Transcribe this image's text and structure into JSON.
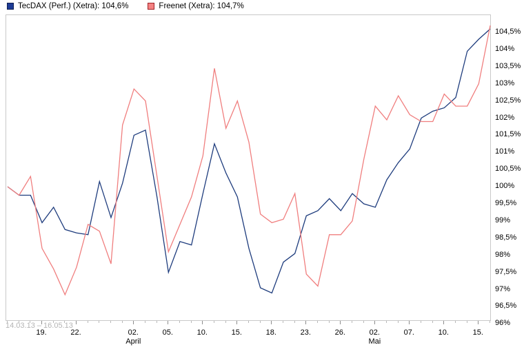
{
  "legend": {
    "items": [
      {
        "id": "tecdax",
        "label": "TecDAX (Perf.) (Xetra): 104,6%",
        "swatch_fill": "#1e3c96",
        "swatch_border": "#0f1f50"
      },
      {
        "id": "freenet",
        "label": "Freenet (Xetra): 104,7%",
        "swatch_fill": "#f48282",
        "swatch_border": "#9e2126"
      }
    ]
  },
  "axes": {
    "date_range": "14.03.13 – 16.05.13",
    "y_labels": [
      "104,5%",
      "104%",
      "103,5%",
      "103%",
      "102,5%",
      "102%",
      "101,5%",
      "101%",
      "100,5%",
      "100%",
      "99,5%",
      "99%",
      "98,5%",
      "98%",
      "97,5%",
      "97%",
      "96,5%",
      "96%"
    ],
    "x_ticks": [
      {
        "i": 3,
        "label": "19."
      },
      {
        "i": 6,
        "label": "22."
      },
      {
        "i": 11,
        "label": "02.",
        "month": "April"
      },
      {
        "i": 14,
        "label": "05."
      },
      {
        "i": 17,
        "label": "10."
      },
      {
        "i": 20,
        "label": "15."
      },
      {
        "i": 23,
        "label": "18."
      },
      {
        "i": 26,
        "label": "23."
      },
      {
        "i": 29,
        "label": "26."
      },
      {
        "i": 32,
        "label": "02.",
        "month": "Mai"
      },
      {
        "i": 35,
        "label": "07."
      },
      {
        "i": 38,
        "label": "10."
      },
      {
        "i": 41,
        "label": "15."
      }
    ]
  },
  "chart_data": {
    "type": "line",
    "title": "",
    "xlabel": "",
    "ylabel": "",
    "ylim": [
      96,
      104.5
    ],
    "y_tick_step": 0.5,
    "grid": false,
    "legend_position": "top-left",
    "x": [
      "14.03.13",
      "15.03.13",
      "18.03.13",
      "19.03.13",
      "20.03.13",
      "21.03.13",
      "22.03.13",
      "25.03.13",
      "26.03.13",
      "27.03.13",
      "28.03.13",
      "02.04.13",
      "03.04.13",
      "04.04.13",
      "05.04.13",
      "08.04.13",
      "09.04.13",
      "10.04.13",
      "11.04.13",
      "12.04.13",
      "15.04.13",
      "16.04.13",
      "17.04.13",
      "18.04.13",
      "19.04.13",
      "22.04.13",
      "23.04.13",
      "24.04.13",
      "25.04.13",
      "26.04.13",
      "29.04.13",
      "30.04.13",
      "02.05.13",
      "03.05.13",
      "06.05.13",
      "07.05.13",
      "08.05.13",
      "09.05.13",
      "10.05.13",
      "13.05.13",
      "14.05.13",
      "15.05.13",
      "16.05.13"
    ],
    "series": [
      {
        "id": "tecdax",
        "name": "TecDAX (Perf.) (Xetra)",
        "color": "#1e3c7d",
        "final_value_pct": 104.6,
        "values": [
          100.0,
          99.75,
          99.75,
          98.95,
          99.4,
          98.75,
          98.65,
          98.6,
          100.15,
          99.1,
          100.1,
          101.5,
          101.65,
          99.7,
          97.5,
          98.4,
          98.3,
          99.8,
          101.25,
          100.4,
          99.7,
          98.2,
          97.05,
          96.9,
          97.8,
          98.05,
          99.15,
          99.3,
          99.65,
          99.3,
          99.8,
          99.5,
          99.4,
          100.2,
          100.7,
          101.1,
          102.0,
          102.2,
          102.3,
          102.6,
          103.95,
          104.3,
          104.6
        ]
      },
      {
        "id": "freenet",
        "name": "Freenet (Xetra)",
        "color": "#f07e7e",
        "final_value_pct": 104.7,
        "values": [
          100.0,
          99.75,
          100.3,
          98.2,
          97.6,
          96.85,
          97.65,
          98.9,
          98.7,
          97.75,
          101.8,
          102.85,
          102.5,
          100.3,
          98.1,
          98.9,
          99.7,
          100.9,
          103.45,
          101.7,
          102.5,
          101.3,
          99.2,
          98.95,
          99.05,
          99.8,
          97.45,
          97.1,
          98.6,
          98.6,
          99.0,
          100.8,
          102.35,
          101.95,
          102.65,
          102.1,
          101.9,
          101.9,
          102.7,
          102.35,
          102.35,
          103.0,
          104.7
        ]
      }
    ]
  }
}
